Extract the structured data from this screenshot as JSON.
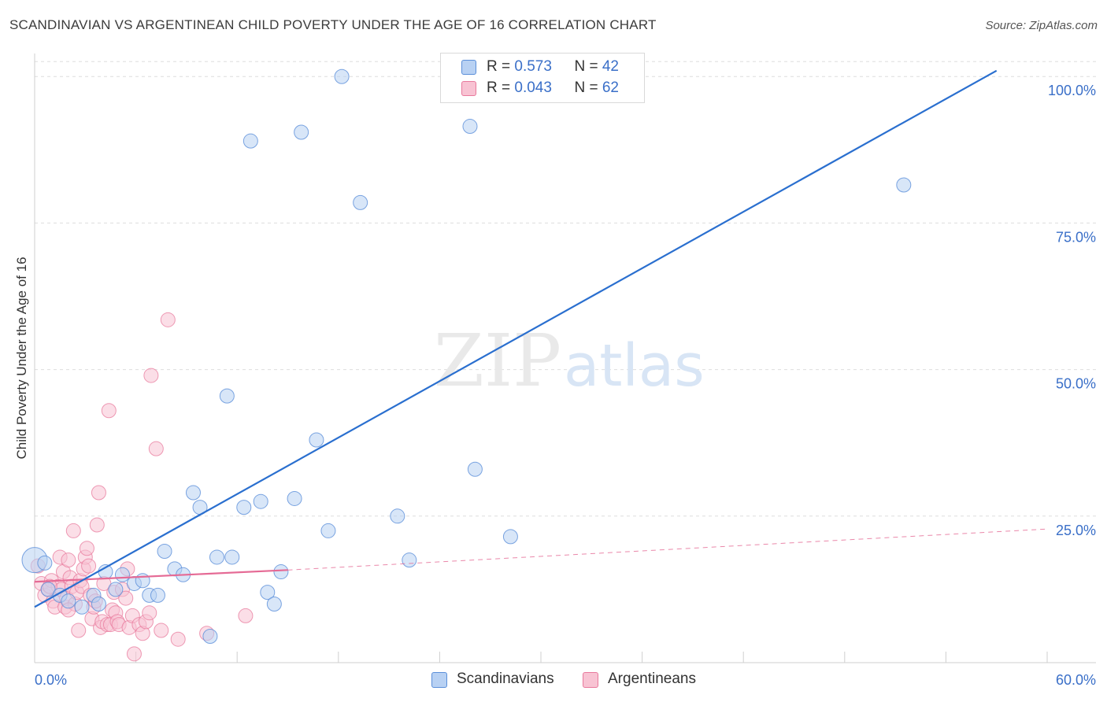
{
  "header": {
    "title": "SCANDINAVIAN VS ARGENTINEAN CHILD POVERTY UNDER THE AGE OF 16 CORRELATION CHART",
    "source": "Source: ZipAtlas.com"
  },
  "watermark": {
    "zip": "ZIP",
    "atlas": "atlas"
  },
  "colors": {
    "blue_fill": "#b8d1f3",
    "blue_stroke": "#5b8fd9",
    "blue_line": "#2a6fcf",
    "pink_fill": "#f8c3d3",
    "pink_stroke": "#e8799c",
    "pink_line": "#e56a95",
    "tick_label": "#3a6fc8",
    "grid": "#dddddd"
  },
  "legend_top": {
    "rows": [
      {
        "r_label": "R = ",
        "r_value": "0.573",
        "n_label": "N = ",
        "n_value": "42"
      },
      {
        "r_label": "R = ",
        "r_value": "0.043",
        "n_label": "N = ",
        "n_value": "62"
      }
    ]
  },
  "legend_bottom": {
    "items": [
      "Scandinavians",
      "Argentineans"
    ]
  },
  "chart_data": {
    "type": "scatter",
    "title": "SCANDINAVIAN VS ARGENTINEAN CHILD POVERTY UNDER THE AGE OF 16 CORRELATION CHART",
    "ylabel": "Child Poverty Under the Age of 16",
    "xlabel": "",
    "xlim": [
      0,
      60
    ],
    "ylim": [
      0,
      105
    ],
    "x_tick_labels": [
      {
        "value": 0,
        "label": "0.0%"
      },
      {
        "value": 60,
        "label": "60.0%"
      }
    ],
    "y_tick_labels": [
      {
        "value": 25,
        "label": "25.0%"
      },
      {
        "value": 50,
        "label": "50.0%"
      },
      {
        "value": 75,
        "label": "75.0%"
      },
      {
        "value": 100,
        "label": "100.0%"
      }
    ],
    "x_minor_ticks": [
      0,
      6,
      12,
      18,
      24,
      30,
      36,
      42,
      48,
      54,
      60
    ],
    "grid": "horizontal dashed",
    "legend_position": "top-center",
    "series": [
      {
        "name": "Scandinavians",
        "R": 0.573,
        "N": 42,
        "trend": {
          "x": [
            0,
            57
          ],
          "y": [
            9.5,
            101
          ]
        },
        "points": [
          [
            0.0,
            17.5,
            16
          ],
          [
            0.8,
            12.5,
            9
          ],
          [
            1.5,
            11.5,
            9
          ],
          [
            2.0,
            10.5,
            9
          ],
          [
            2.8,
            9.5,
            9
          ],
          [
            3.5,
            11.5,
            9
          ],
          [
            3.8,
            10.0,
            9
          ],
          [
            4.2,
            15.5,
            9
          ],
          [
            4.8,
            12.5,
            9
          ],
          [
            5.2,
            15.0,
            9
          ],
          [
            5.9,
            13.5,
            9
          ],
          [
            6.4,
            14.0,
            9
          ],
          [
            6.8,
            11.5,
            9
          ],
          [
            7.3,
            11.5,
            9
          ],
          [
            7.7,
            19.0,
            9
          ],
          [
            8.3,
            16.0,
            9
          ],
          [
            8.8,
            15.0,
            9
          ],
          [
            9.4,
            29.0,
            9
          ],
          [
            9.8,
            26.5,
            9
          ],
          [
            10.4,
            4.5,
            9
          ],
          [
            10.8,
            18.0,
            9
          ],
          [
            11.4,
            45.5,
            9
          ],
          [
            11.7,
            18.0,
            9
          ],
          [
            12.4,
            26.5,
            9
          ],
          [
            12.8,
            89.0,
            9
          ],
          [
            13.4,
            27.5,
            9
          ],
          [
            13.8,
            12.0,
            9
          ],
          [
            14.2,
            10.0,
            9
          ],
          [
            14.6,
            15.5,
            9
          ],
          [
            15.4,
            28.0,
            9
          ],
          [
            15.8,
            90.5,
            9
          ],
          [
            16.7,
            38.0,
            9
          ],
          [
            17.4,
            22.5,
            9
          ],
          [
            18.2,
            100.0,
            9
          ],
          [
            19.3,
            78.5,
            9
          ],
          [
            21.5,
            25.0,
            9
          ],
          [
            22.2,
            17.5,
            9
          ],
          [
            25.8,
            91.5,
            9
          ],
          [
            26.1,
            33.0,
            9
          ],
          [
            28.2,
            21.5,
            9
          ],
          [
            51.5,
            81.5,
            9
          ],
          [
            0.6,
            17.0,
            9
          ]
        ]
      },
      {
        "name": "Argentineans",
        "R": 0.043,
        "N": 62,
        "trend_solid": {
          "x": [
            0,
            15
          ],
          "y": [
            13.8,
            15.8
          ]
        },
        "trend_dashed": {
          "x": [
            15,
            60
          ],
          "y": [
            15.8,
            22.8
          ]
        },
        "points": [
          [
            0.2,
            16.5,
            9
          ],
          [
            0.4,
            13.5,
            9
          ],
          [
            0.6,
            11.5,
            9
          ],
          [
            0.8,
            12.5,
            9
          ],
          [
            1.0,
            14.0,
            9
          ],
          [
            1.1,
            10.5,
            9
          ],
          [
            1.2,
            9.5,
            9
          ],
          [
            1.4,
            13.0,
            9
          ],
          [
            1.5,
            18.0,
            9
          ],
          [
            1.6,
            12.5,
            9
          ],
          [
            1.7,
            15.5,
            9
          ],
          [
            1.8,
            9.5,
            9
          ],
          [
            1.9,
            11.0,
            9
          ],
          [
            2.0,
            17.5,
            9
          ],
          [
            2.1,
            14.5,
            9
          ],
          [
            2.2,
            13.0,
            9
          ],
          [
            2.3,
            22.5,
            9
          ],
          [
            2.4,
            10.0,
            9
          ],
          [
            2.5,
            12.0,
            9
          ],
          [
            2.6,
            5.5,
            9
          ],
          [
            2.7,
            14.0,
            9
          ],
          [
            2.8,
            13.0,
            9
          ],
          [
            2.9,
            16.0,
            9
          ],
          [
            3.0,
            18.0,
            9
          ],
          [
            3.1,
            19.5,
            9
          ],
          [
            3.2,
            16.5,
            9
          ],
          [
            3.3,
            11.5,
            9
          ],
          [
            3.4,
            7.5,
            9
          ],
          [
            3.5,
            9.5,
            9
          ],
          [
            3.6,
            10.5,
            9
          ],
          [
            3.7,
            23.5,
            9
          ],
          [
            3.8,
            29.0,
            9
          ],
          [
            3.9,
            6.0,
            9
          ],
          [
            4.0,
            7.0,
            9
          ],
          [
            4.1,
            13.5,
            9
          ],
          [
            4.3,
            6.5,
            9
          ],
          [
            4.4,
            43.0,
            9
          ],
          [
            4.5,
            6.5,
            9
          ],
          [
            4.6,
            9.0,
            9
          ],
          [
            4.7,
            12.0,
            9
          ],
          [
            4.8,
            8.5,
            9
          ],
          [
            4.9,
            7.0,
            9
          ],
          [
            5.0,
            6.5,
            9
          ],
          [
            5.2,
            12.5,
            9
          ],
          [
            5.4,
            11.0,
            9
          ],
          [
            5.5,
            16.0,
            9
          ],
          [
            5.6,
            6.0,
            9
          ],
          [
            5.8,
            8.0,
            9
          ],
          [
            5.9,
            1.5,
            9
          ],
          [
            6.2,
            6.5,
            9
          ],
          [
            6.4,
            5.0,
            9
          ],
          [
            6.6,
            7.0,
            9
          ],
          [
            6.8,
            8.5,
            9
          ],
          [
            6.9,
            49.0,
            9
          ],
          [
            7.2,
            36.5,
            9
          ],
          [
            7.5,
            5.5,
            9
          ],
          [
            7.9,
            58.5,
            9
          ],
          [
            8.5,
            4.0,
            9
          ],
          [
            10.2,
            5.0,
            9
          ],
          [
            12.5,
            8.0,
            9
          ],
          [
            0.9,
            13.0,
            9
          ],
          [
            2.0,
            9.0,
            9
          ]
        ]
      }
    ]
  }
}
